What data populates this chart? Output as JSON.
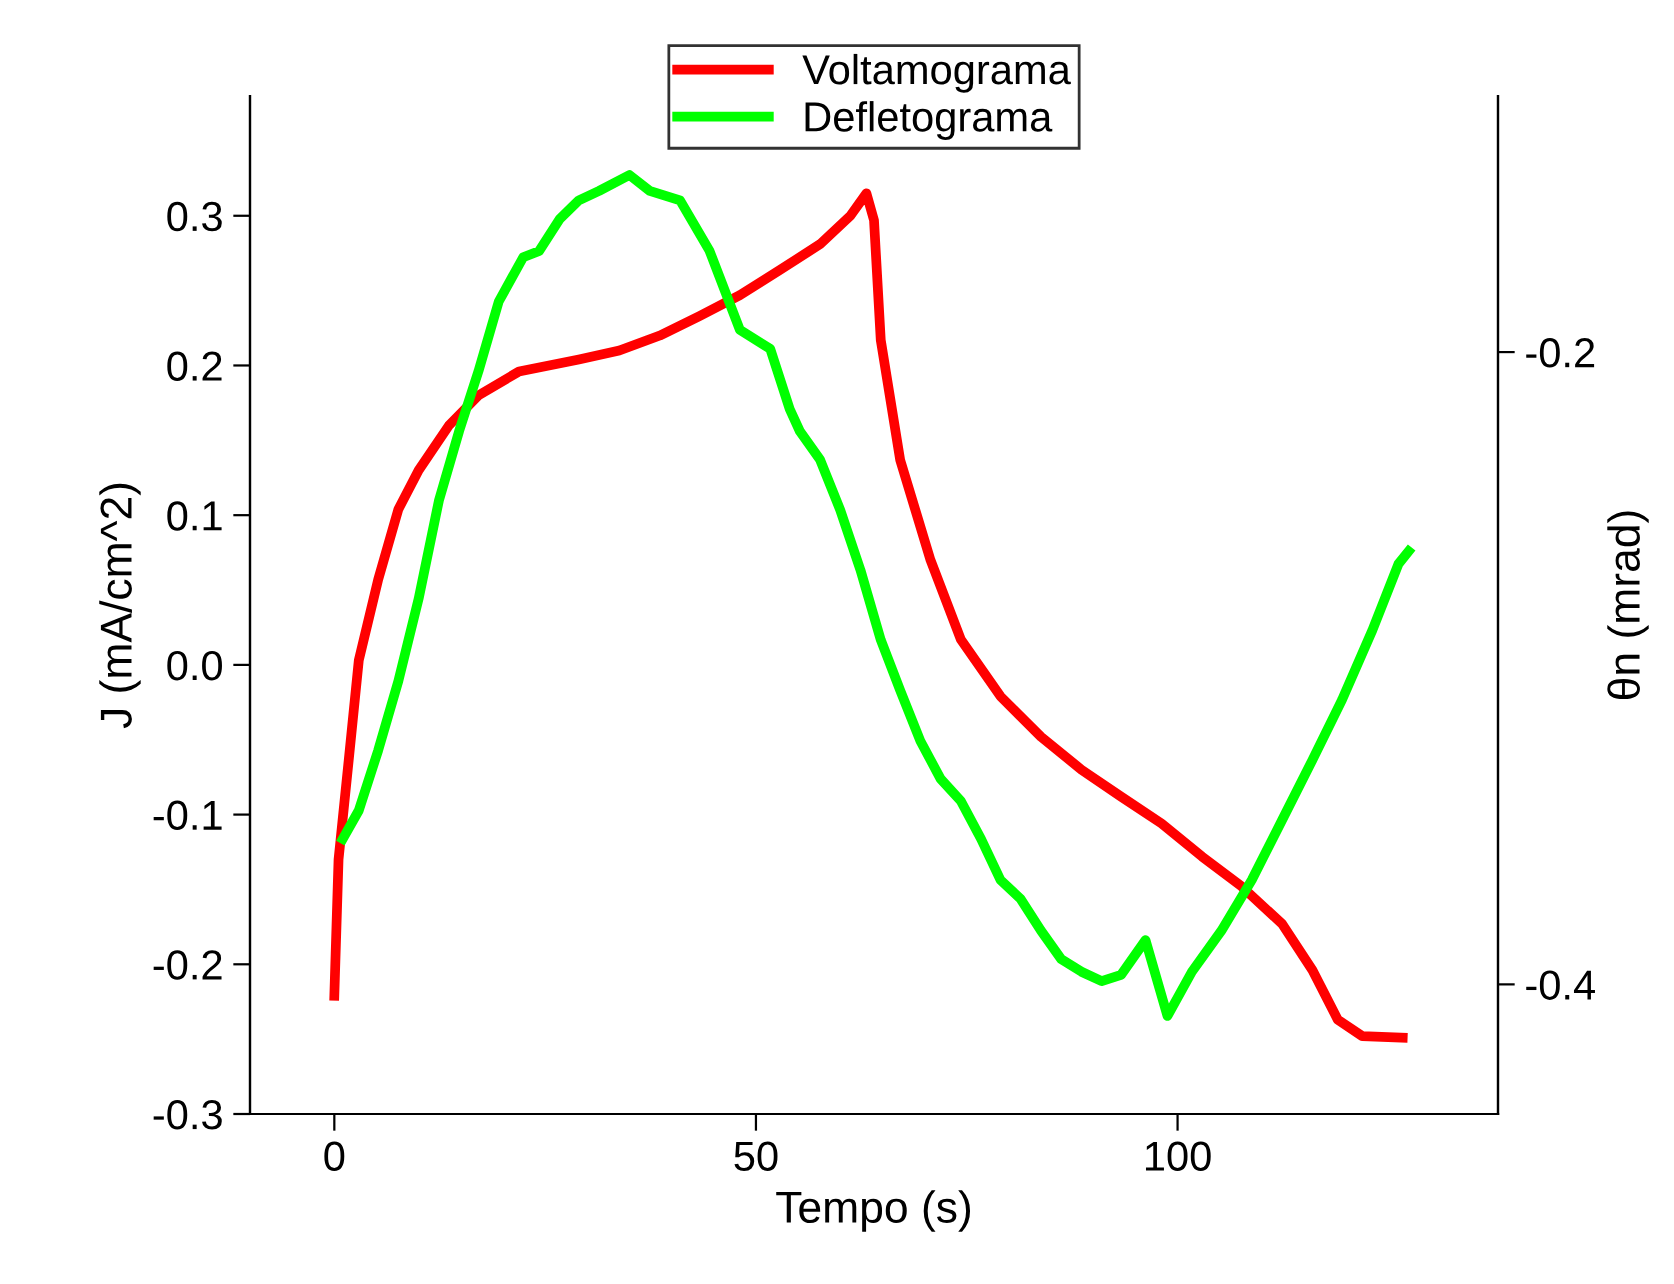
{
  "chart_data": {
    "type": "line",
    "xlabel": "Tempo (s)",
    "ylabel": "J (mA/cm^2)",
    "y2label": "θn (mrad)",
    "xlim": [
      -10,
      138
    ],
    "xticks": [
      0,
      50,
      100
    ],
    "ylim": [
      -0.3,
      0.38
    ],
    "yticks": [
      {
        "value": -0.3,
        "label": "-0.3"
      },
      {
        "value": -0.2,
        "label": "-0.2"
      },
      {
        "value": -0.1,
        "label": "-0.1"
      },
      {
        "value": 0,
        "label": "0.0"
      },
      {
        "value": 0.1,
        "label": "0.1"
      },
      {
        "value": 0.2,
        "label": "0.2"
      },
      {
        "value": 0.3,
        "label": "0.3"
      }
    ],
    "y2lim": [
      -0.441,
      -0.119
    ],
    "y2ticks": [
      -0.2,
      -0.4
    ],
    "legend": "top",
    "grid": false,
    "marker": "none",
    "line_style": "solid",
    "series": [
      {
        "name": "Voltamograma",
        "color": "#ff0000",
        "x": [
          0,
          0.5,
          1.7,
          2.9,
          5.2,
          7.6,
          10,
          13.6,
          17.1,
          21.9,
          29,
          33.8,
          38.6,
          43.3,
          48.1,
          52.9,
          57.6,
          61.2,
          63.1,
          64,
          64.8,
          67.1,
          70.7,
          74.3,
          79,
          83.8,
          88.6,
          93.3,
          98.1,
          102.9,
          107.6,
          112.4,
          116,
          119,
          121.9,
          126.7
        ],
        "values": [
          -0.221,
          -0.13,
          -0.064,
          0.003,
          0.057,
          0.104,
          0.13,
          0.16,
          0.18,
          0.196,
          0.204,
          0.21,
          0.22,
          0.233,
          0.247,
          0.264,
          0.281,
          0.3,
          0.315,
          0.297,
          0.217,
          0.137,
          0.07,
          0.017,
          -0.021,
          -0.048,
          -0.07,
          -0.088,
          -0.106,
          -0.128,
          -0.148,
          -0.173,
          -0.204,
          -0.237,
          -0.248,
          -0.249
        ]
      },
      {
        "name": "Defletograma",
        "color": "#00ff00",
        "axis": "y2",
        "x": [
          1,
          2.9,
          5.2,
          7.6,
          10,
          12.4,
          14.8,
          17.1,
          19.5,
          22.4,
          24.3,
          26.7,
          29,
          31.4,
          35,
          37.4,
          41,
          44.5,
          48.1,
          51.7,
          54,
          55.2,
          57.6,
          60,
          62.4,
          64.8,
          67.1,
          69.5,
          71.9,
          74.3,
          76.7,
          79,
          81.4,
          83.8,
          86.2,
          88.6,
          91,
          93.3,
          96.2,
          98.8,
          101.7,
          105.2,
          108.8,
          112.4,
          116,
          119.5,
          123.1,
          126.2,
          127.4
        ],
        "values": [
          -0.354,
          -0.345,
          -0.326,
          -0.304,
          -0.278,
          -0.247,
          -0.225,
          -0.206,
          -0.184,
          -0.17,
          -0.168,
          -0.158,
          -0.152,
          -0.149,
          -0.144,
          -0.149,
          -0.152,
          -0.168,
          -0.193,
          -0.199,
          -0.218,
          -0.225,
          -0.234,
          -0.25,
          -0.269,
          -0.291,
          -0.307,
          -0.323,
          -0.335,
          -0.342,
          -0.354,
          -0.367,
          -0.373,
          -0.383,
          -0.392,
          -0.396,
          -0.399,
          -0.397,
          -0.386,
          -0.41,
          -0.396,
          -0.383,
          -0.367,
          -0.348,
          -0.329,
          -0.31,
          -0.288,
          -0.267,
          -0.263
        ]
      }
    ]
  }
}
